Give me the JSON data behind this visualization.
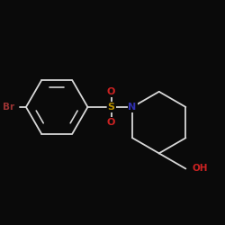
{
  "bg_color": "#0a0a0a",
  "bond_color": "#d8d8d8",
  "atom_colors": {
    "Br": "#993333",
    "S": "#b89000",
    "N": "#3030b0",
    "O": "#cc2222",
    "OH": "#cc2222"
  },
  "scale": 1.0
}
